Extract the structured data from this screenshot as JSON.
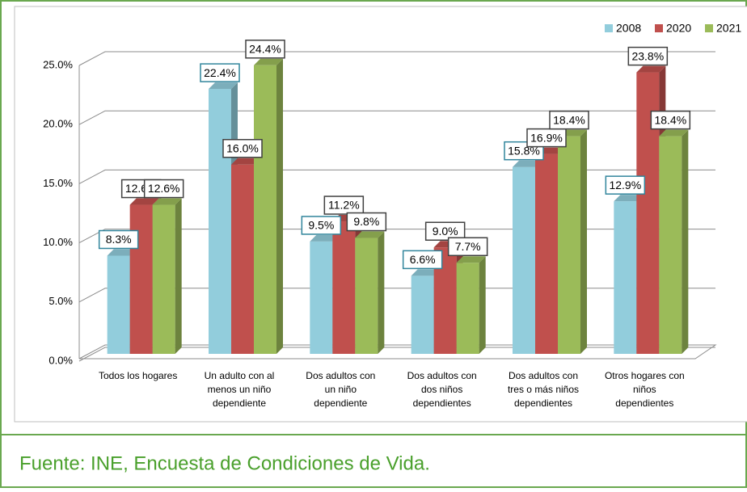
{
  "chart_data": {
    "type": "bar3d",
    "categories": [
      [
        "Todos los hogares"
      ],
      [
        "Un adulto con al",
        "menos un niño",
        "dependiente"
      ],
      [
        "Dos adultos con",
        "un niño",
        "dependiente"
      ],
      [
        "Dos adultos con",
        "dos niños",
        "dependientes"
      ],
      [
        "Dos adultos con",
        "tres o más niños",
        "dependientes"
      ],
      [
        "Otros hogares con",
        "niños",
        "dependientes"
      ]
    ],
    "series": [
      {
        "name": "2008",
        "color": "#92cddc",
        "label_border": "#31859c",
        "values": [
          8.3,
          22.4,
          9.5,
          6.6,
          15.8,
          12.9
        ],
        "value_labels": [
          "8.3%",
          "22.4%",
          "9.5%",
          "6.6%",
          "15.8%",
          "12.9%"
        ]
      },
      {
        "name": "2020",
        "color": "#c0504d",
        "label_border": "#404040",
        "values": [
          12.6,
          16.0,
          11.2,
          9.0,
          16.9,
          23.8
        ],
        "value_labels": [
          "12.6%",
          "16.0%",
          "11.2%",
          "9.0%",
          "16.9%",
          "23.8%"
        ]
      },
      {
        "name": "2021",
        "color": "#9bbb59",
        "label_border": "#404040",
        "values": [
          12.6,
          24.4,
          9.8,
          7.7,
          18.4,
          18.4
        ],
        "value_labels": [
          "12.6%",
          "24.4%",
          "9.8%",
          "7.7%",
          "18.4%",
          "18.4%"
        ]
      }
    ],
    "ylim": [
      0,
      25
    ],
    "yticks": [
      {
        "value": 0,
        "label": "0.0%"
      },
      {
        "value": 5,
        "label": "5.0%"
      },
      {
        "value": 10,
        "label": "10.0%"
      },
      {
        "value": 15,
        "label": "15.0%"
      },
      {
        "value": 20,
        "label": "20.0%"
      },
      {
        "value": 25,
        "label": "25.0%"
      }
    ],
    "grid": true,
    "legend": "top-right"
  },
  "source": "Fuente: INE, Encuesta de Condiciones de Vida."
}
